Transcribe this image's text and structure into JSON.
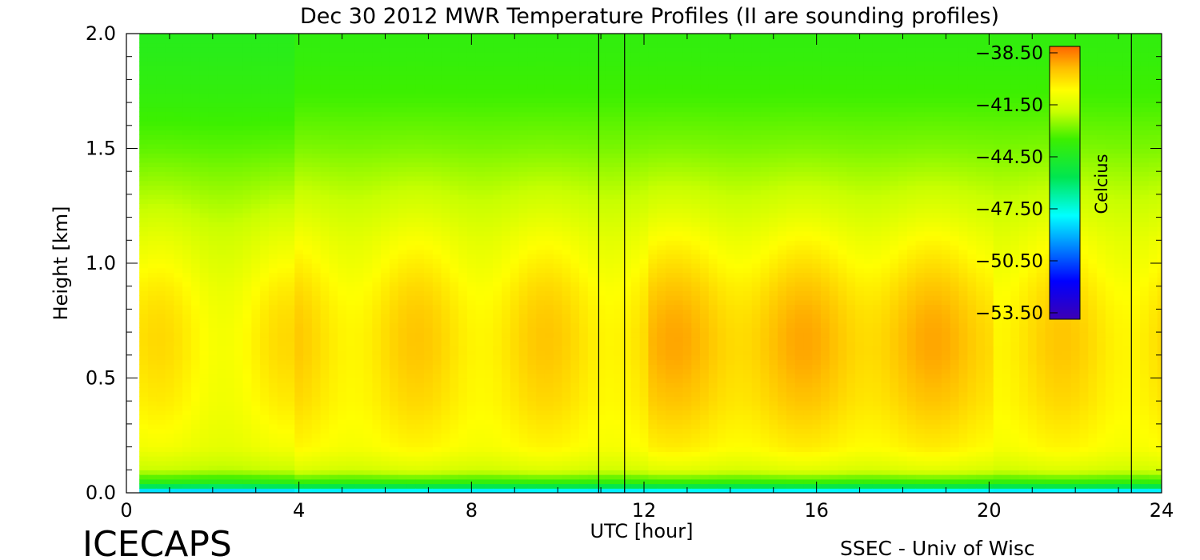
{
  "chart_data": {
    "type": "heatmap",
    "title": "Dec 30 2012 MWR Temperature Profiles (II are sounding profiles)",
    "xlabel": "UTC [hour]",
    "ylabel": "Height [km]",
    "xlim": [
      0,
      24
    ],
    "ylim": [
      0,
      2.0
    ],
    "x_ticks": [
      "0",
      "4",
      "8",
      "12",
      "16",
      "20",
      "24"
    ],
    "y_ticks": [
      "0.0",
      "0.5",
      "1.0",
      "1.5",
      "2.0"
    ],
    "colorbar": {
      "label": "Celcius",
      "ticks": [
        "-38.50",
        "-41.50",
        "-44.50",
        "-47.50",
        "-50.50",
        "-53.50"
      ],
      "range": [
        -53.5,
        -38.5
      ]
    },
    "sounding_profiles": [
      {
        "start_hour": 10.95,
        "end_hour": 11.55
      },
      {
        "start_hour": 23.3,
        "end_hour": 24.0
      }
    ],
    "data_start_hour": 0.3,
    "heights_km": [
      0.0,
      0.02,
      0.05,
      0.1,
      0.2,
      0.3,
      0.4,
      0.5,
      0.6,
      0.7,
      0.8,
      0.9,
      1.0,
      1.1,
      1.2,
      1.3,
      1.4,
      1.5,
      1.6,
      1.7,
      1.8,
      1.9,
      2.0
    ],
    "temperature_profile_c": [
      -49.5,
      -46.5,
      -43.8,
      -41.8,
      -41.0,
      -40.8,
      -40.6,
      -40.5,
      -40.4,
      -40.4,
      -40.5,
      -40.7,
      -41.0,
      -41.3,
      -41.7,
      -42.1,
      -42.5,
      -42.9,
      -43.2,
      -43.5,
      -43.7,
      -43.9,
      -44.0
    ]
  },
  "footer": {
    "left": "ICECAPS",
    "right": "SSEC - Univ of Wisc"
  }
}
